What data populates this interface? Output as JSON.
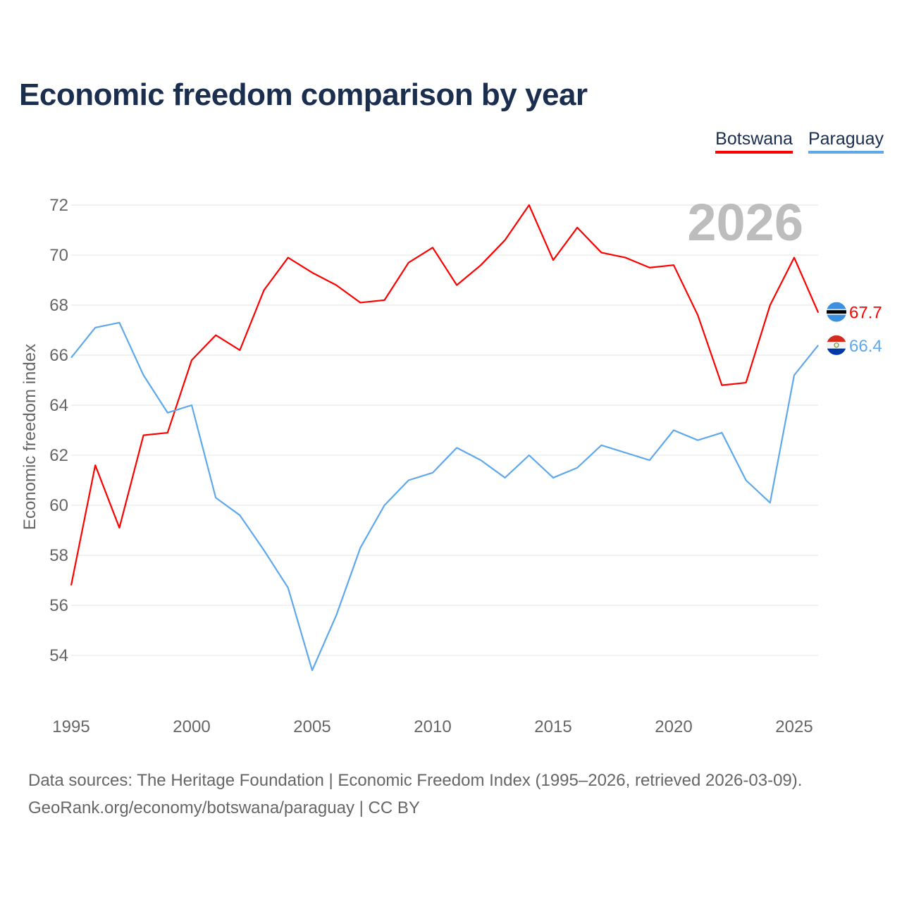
{
  "title": "Economic freedom comparison by year",
  "legend": [
    {
      "label": "Botswana",
      "color": "#ff0000"
    },
    {
      "label": "Paraguay",
      "color": "#5ea8ec"
    }
  ],
  "source_line1": "Data sources: The Heritage Foundation | Economic Freedom Index (1995–2026, retrieved 2026-03-09).",
  "source_line2": "GeoRank.org/economy/botswana/paraguay | CC BY",
  "chart_data": {
    "type": "line",
    "title": "Economic freedom comparison by year",
    "ylabel": "Economic freedom index",
    "xlabel": "",
    "year_watermark": "2026",
    "x": [
      1995,
      1996,
      1997,
      1998,
      1999,
      2000,
      2001,
      2002,
      2003,
      2004,
      2005,
      2006,
      2007,
      2008,
      2009,
      2010,
      2011,
      2012,
      2013,
      2014,
      2015,
      2016,
      2017,
      2018,
      2019,
      2020,
      2021,
      2022,
      2023,
      2024,
      2025,
      2026
    ],
    "xticks": [
      "1995",
      "2000",
      "2005",
      "2010",
      "2015",
      "2020",
      "2025"
    ],
    "yticks": [
      "54",
      "56",
      "58",
      "60",
      "62",
      "64",
      "66",
      "68",
      "70",
      "72"
    ],
    "ylim": [
      52,
      73
    ],
    "grid": true,
    "legend_position": "top-right",
    "series": [
      {
        "name": "Botswana",
        "color": "#ff0000",
        "end_label": "67.7",
        "values": [
          56.8,
          61.6,
          59.1,
          62.8,
          62.9,
          65.8,
          66.8,
          66.2,
          68.6,
          69.9,
          69.3,
          68.8,
          68.1,
          68.2,
          69.7,
          70.3,
          68.8,
          69.6,
          70.6,
          72.0,
          69.8,
          71.1,
          70.1,
          69.9,
          69.5,
          69.6,
          67.6,
          64.8,
          64.9,
          68.0,
          69.9,
          67.7
        ]
      },
      {
        "name": "Paraguay",
        "color": "#5ea8ec",
        "end_label": "66.4",
        "values": [
          65.9,
          67.1,
          67.3,
          65.2,
          63.7,
          64.0,
          60.3,
          59.6,
          58.2,
          56.7,
          53.4,
          55.6,
          58.3,
          60.0,
          61.0,
          61.3,
          62.3,
          61.8,
          61.1,
          62.0,
          61.1,
          61.5,
          62.4,
          62.1,
          61.8,
          63.0,
          62.6,
          62.9,
          61.0,
          60.1,
          65.2,
          66.4
        ]
      }
    ]
  }
}
